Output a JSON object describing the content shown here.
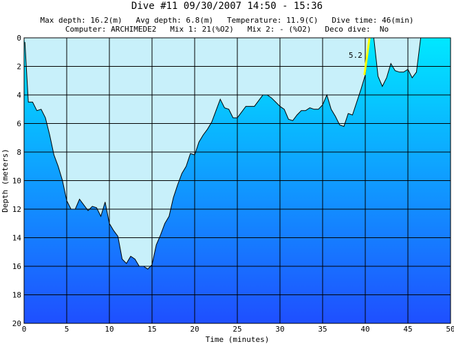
{
  "header": {
    "title": "Dive #11  09/30/2007  14:50 - 15:36",
    "info_line1": "Max depth: 16.2(m)   Avg depth: 6.8(m)   Temperature: 11.9(C)   Dive time: 46(min)",
    "info_line2": "Computer: ARCHIMEDE2   Mix 1: 21(%O2)   Mix 2: - (%O2)   Deco dive:  No"
  },
  "chart_data": {
    "type": "area",
    "xlabel": "Time (minutes)",
    "ylabel": "Depth (meters)",
    "xlim": [
      0,
      50
    ],
    "ylim": [
      0,
      20
    ],
    "y_inverted": true,
    "grid": true,
    "x_ticks": [
      0,
      5,
      10,
      15,
      20,
      25,
      30,
      35,
      40,
      45,
      50
    ],
    "y_ticks": [
      0,
      2,
      4,
      6,
      8,
      10,
      12,
      14,
      16,
      18,
      20
    ],
    "colors": {
      "water_top": "#00e8ff",
      "water_bottom": "#1f4fff",
      "surface_area": "#c8f0fa",
      "ascent_warning": "#ffff00"
    },
    "profile": {
      "x": [
        0.1,
        0.5,
        1,
        1.5,
        2,
        2.5,
        3,
        3.5,
        4,
        4.5,
        5,
        5.5,
        6,
        6.5,
        7,
        7.5,
        8,
        8.5,
        9,
        9.5,
        10,
        10.5,
        11,
        11.5,
        12,
        12.5,
        13,
        13.5,
        14,
        14.5,
        15,
        15.5,
        16,
        16.5,
        17,
        17.5,
        18,
        18.5,
        19,
        19.5,
        20,
        20.5,
        21,
        21.5,
        22,
        22.5,
        23,
        23.5,
        24,
        24.5,
        25,
        25.5,
        26,
        26.5,
        27,
        27.5,
        28,
        28.5,
        29,
        29.5,
        30,
        30.5,
        31,
        31.5,
        32,
        32.5,
        33,
        33.5,
        34,
        34.5,
        35,
        35.5,
        36,
        36.5,
        37,
        37.5,
        38,
        38.5,
        39,
        39.5,
        40,
        40.5,
        41,
        41.5,
        42,
        42.5,
        43,
        43.5,
        44,
        44.5,
        45,
        45.5,
        46,
        46.5
      ],
      "y": [
        0.3,
        4.5,
        4.5,
        5.1,
        5.0,
        5.6,
        6.8,
        8.2,
        9.0,
        10.0,
        11.4,
        12.0,
        12.0,
        11.3,
        11.7,
        12.1,
        11.8,
        11.9,
        12.5,
        11.5,
        13.0,
        13.5,
        13.9,
        15.5,
        15.8,
        15.3,
        15.5,
        16.0,
        16.0,
        16.2,
        15.9,
        14.5,
        13.8,
        13.0,
        12.5,
        11.2,
        10.3,
        9.5,
        9.0,
        8.1,
        8.2,
        7.3,
        6.8,
        6.4,
        5.9,
        5.1,
        4.3,
        4.9,
        5.0,
        5.6,
        5.6,
        5.2,
        4.8,
        4.8,
        4.8,
        4.4,
        4.0,
        4.0,
        4.2,
        4.5,
        4.8,
        5.0,
        5.7,
        5.8,
        5.4,
        5.1,
        5.1,
        4.9,
        5.0,
        5.0,
        4.7,
        4.0,
        5.0,
        5.5,
        6.1,
        6.2,
        5.3,
        5.4,
        4.5,
        3.6,
        2.6,
        0.0,
        0.0,
        2.7,
        3.4,
        2.8,
        1.8,
        2.3,
        2.4,
        2.4,
        2.2,
        2.8,
        2.4,
        0.0
      ]
    },
    "ascent_warning": {
      "x": [
        39.9,
        40.5
      ],
      "y": [
        2.6,
        0.0
      ],
      "label": "5.2"
    }
  }
}
